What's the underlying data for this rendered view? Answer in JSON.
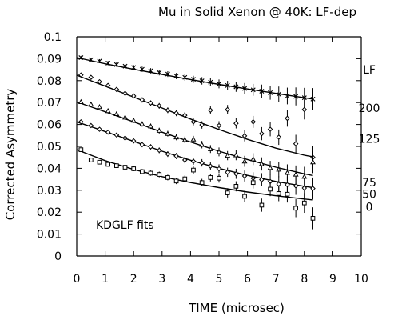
{
  "chart_data": {
    "type": "scatter",
    "title": "Mu in Solid Xenon @ 40K: LF-dep",
    "xlabel": "TIME (microsec)",
    "ylabel": "Corrected Asymmetry",
    "xlim": [
      0,
      10
    ],
    "ylim": [
      0,
      0.1
    ],
    "x_ticks": [
      0,
      1,
      2,
      3,
      4,
      5,
      6,
      7,
      8,
      9,
      10
    ],
    "x_tick_labels": [
      "0",
      "1",
      "2",
      "3",
      "4",
      "5",
      "6",
      "7",
      "8",
      "9",
      "10"
    ],
    "y_ticks": [
      0,
      0.01,
      0.02,
      0.03,
      0.04,
      0.05,
      0.06,
      0.07,
      0.08,
      0.09,
      0.1
    ],
    "y_tick_labels": [
      "0",
      "0.01",
      "0.02",
      "0.03",
      "0.04",
      "0.05",
      "0.06",
      "0.07",
      "0.08",
      "0.09",
      "0.1"
    ],
    "legend_title": "LF",
    "annotation": "KDGLF fits",
    "series": [
      {
        "name": "200",
        "marker": "x",
        "fit": [
          [
            0,
            0.0905
          ],
          [
            1,
            0.0877
          ],
          [
            2,
            0.0852
          ],
          [
            3,
            0.0828
          ],
          [
            4,
            0.0805
          ],
          [
            5,
            0.0783
          ],
          [
            6,
            0.0762
          ],
          [
            7,
            0.0742
          ],
          [
            8,
            0.0722
          ],
          [
            8.3,
            0.0716
          ]
        ],
        "points": [
          [
            0.15,
            0.0905,
            0.0008
          ],
          [
            0.5,
            0.0895,
            0.0009
          ],
          [
            0.8,
            0.0889,
            0.0009
          ],
          [
            1.1,
            0.088,
            0.001
          ],
          [
            1.4,
            0.0873,
            0.001
          ],
          [
            1.7,
            0.0866,
            0.0011
          ],
          [
            2.0,
            0.086,
            0.0011
          ],
          [
            2.3,
            0.0852,
            0.0012
          ],
          [
            2.6,
            0.0845,
            0.0012
          ],
          [
            2.9,
            0.0837,
            0.0013
          ],
          [
            3.2,
            0.083,
            0.0013
          ],
          [
            3.5,
            0.0821,
            0.0014
          ],
          [
            3.8,
            0.0815,
            0.0015
          ],
          [
            4.1,
            0.0806,
            0.0016
          ],
          [
            4.4,
            0.0799,
            0.0017
          ],
          [
            4.7,
            0.0793,
            0.0018
          ],
          [
            5.0,
            0.0785,
            0.002
          ],
          [
            5.3,
            0.0778,
            0.0021
          ],
          [
            5.6,
            0.0772,
            0.0023
          ],
          [
            5.9,
            0.0764,
            0.0025
          ],
          [
            6.2,
            0.0758,
            0.0027
          ],
          [
            6.5,
            0.0752,
            0.003
          ],
          [
            6.8,
            0.0745,
            0.0032
          ],
          [
            7.1,
            0.0738,
            0.0035
          ],
          [
            7.4,
            0.073,
            0.0038
          ],
          [
            7.7,
            0.0728,
            0.0041
          ],
          [
            8.0,
            0.0722,
            0.0045
          ],
          [
            8.3,
            0.0716,
            0.005
          ]
        ]
      },
      {
        "name": "125",
        "marker": "diamond",
        "fit": [
          [
            0,
            0.0825
          ],
          [
            1,
            0.0775
          ],
          [
            2,
            0.0725
          ],
          [
            3,
            0.0675
          ],
          [
            4,
            0.0625
          ],
          [
            5,
            0.0577
          ],
          [
            6,
            0.0532
          ],
          [
            7,
            0.0492
          ],
          [
            8,
            0.046
          ],
          [
            8.3,
            0.0453
          ]
        ],
        "points": [
          [
            0.15,
            0.0826,
            0.0008
          ],
          [
            0.5,
            0.0815,
            0.0009
          ],
          [
            0.8,
            0.0795,
            0.0009
          ],
          [
            1.1,
            0.0778,
            0.001
          ],
          [
            1.4,
            0.076,
            0.001
          ],
          [
            1.7,
            0.0742,
            0.0011
          ],
          [
            2.0,
            0.073,
            0.0011
          ],
          [
            2.3,
            0.0712,
            0.0012
          ],
          [
            2.6,
            0.0698,
            0.0012
          ],
          [
            2.9,
            0.0685,
            0.0013
          ],
          [
            3.2,
            0.0665,
            0.0013
          ],
          [
            3.5,
            0.0652,
            0.0014
          ],
          [
            3.8,
            0.0642,
            0.0015
          ],
          [
            4.1,
            0.0612,
            0.0016
          ],
          [
            4.4,
            0.0598,
            0.0017
          ],
          [
            4.7,
            0.0665,
            0.0018
          ],
          [
            5.0,
            0.0595,
            0.002
          ],
          [
            5.3,
            0.0668,
            0.0021
          ],
          [
            5.6,
            0.0605,
            0.0023
          ],
          [
            5.9,
            0.0548,
            0.0025
          ],
          [
            6.2,
            0.0612,
            0.0027
          ],
          [
            6.5,
            0.0558,
            0.003
          ],
          [
            6.8,
            0.0578,
            0.0032
          ],
          [
            7.1,
            0.0542,
            0.0035
          ],
          [
            7.4,
            0.0628,
            0.0038
          ],
          [
            7.7,
            0.0512,
            0.0041
          ],
          [
            8.0,
            0.0668,
            0.0045
          ],
          [
            8.3,
            0.045,
            0.005
          ]
        ]
      },
      {
        "name": "75",
        "marker": "triangle",
        "fit": [
          [
            0,
            0.0703
          ],
          [
            1,
            0.0658
          ],
          [
            2,
            0.0612
          ],
          [
            3,
            0.0565
          ],
          [
            4,
            0.052
          ],
          [
            5,
            0.0478
          ],
          [
            6,
            0.044
          ],
          [
            7,
            0.0405
          ],
          [
            8,
            0.0375
          ],
          [
            8.3,
            0.0367
          ]
        ],
        "points": [
          [
            0.15,
            0.0703,
            0.0008
          ],
          [
            0.5,
            0.0692,
            0.0009
          ],
          [
            0.8,
            0.068,
            0.0009
          ],
          [
            1.1,
            0.0662,
            0.001
          ],
          [
            1.4,
            0.0648,
            0.001
          ],
          [
            1.7,
            0.0632,
            0.0011
          ],
          [
            2.0,
            0.0618,
            0.0011
          ],
          [
            2.3,
            0.0602,
            0.0012
          ],
          [
            2.6,
            0.0592,
            0.0012
          ],
          [
            2.9,
            0.0572,
            0.0013
          ],
          [
            3.2,
            0.0558,
            0.0013
          ],
          [
            3.5,
            0.0542,
            0.0014
          ],
          [
            3.8,
            0.053,
            0.0015
          ],
          [
            4.1,
            0.0532,
            0.0016
          ],
          [
            4.4,
            0.0508,
            0.0017
          ],
          [
            4.7,
            0.0488,
            0.0018
          ],
          [
            5.0,
            0.0475,
            0.002
          ],
          [
            5.3,
            0.0458,
            0.0021
          ],
          [
            5.6,
            0.046,
            0.0023
          ],
          [
            5.9,
            0.0432,
            0.0025
          ],
          [
            6.2,
            0.0442,
            0.0027
          ],
          [
            6.5,
            0.042,
            0.003
          ],
          [
            6.8,
            0.0402,
            0.0032
          ],
          [
            7.1,
            0.0395,
            0.0035
          ],
          [
            7.4,
            0.038,
            0.0038
          ],
          [
            7.7,
            0.0372,
            0.0041
          ],
          [
            8.0,
            0.0362,
            0.0045
          ],
          [
            8.3,
            0.0428,
            0.005
          ]
        ]
      },
      {
        "name": "50",
        "marker": "diamond",
        "fit": [
          [
            0,
            0.0612
          ],
          [
            1,
            0.0568
          ],
          [
            2,
            0.0523
          ],
          [
            3,
            0.0478
          ],
          [
            4,
            0.0437
          ],
          [
            5,
            0.04
          ],
          [
            6,
            0.0368
          ],
          [
            7,
            0.034
          ],
          [
            8,
            0.0318
          ],
          [
            8.3,
            0.0312
          ]
        ],
        "points": [
          [
            0.15,
            0.0612,
            0.0008
          ],
          [
            0.5,
            0.0595,
            0.0009
          ],
          [
            0.8,
            0.0578,
            0.0009
          ],
          [
            1.1,
            0.0565,
            0.001
          ],
          [
            1.4,
            0.0552,
            0.001
          ],
          [
            1.7,
            0.0538,
            0.0011
          ],
          [
            2.0,
            0.0525,
            0.0011
          ],
          [
            2.3,
            0.0508,
            0.0012
          ],
          [
            2.6,
            0.0498,
            0.0012
          ],
          [
            2.9,
            0.0482,
            0.0013
          ],
          [
            3.2,
            0.0465,
            0.0013
          ],
          [
            3.5,
            0.0456,
            0.0014
          ],
          [
            3.8,
            0.0438,
            0.0015
          ],
          [
            4.1,
            0.0432,
            0.0016
          ],
          [
            4.4,
            0.0425,
            0.0017
          ],
          [
            4.7,
            0.041,
            0.0018
          ],
          [
            5.0,
            0.0398,
            0.002
          ],
          [
            5.3,
            0.0382,
            0.0021
          ],
          [
            5.6,
            0.0375,
            0.0023
          ],
          [
            5.9,
            0.0365,
            0.0025
          ],
          [
            6.2,
            0.0355,
            0.0027
          ],
          [
            6.5,
            0.0348,
            0.003
          ],
          [
            6.8,
            0.034,
            0.0032
          ],
          [
            7.1,
            0.0328,
            0.0035
          ],
          [
            7.4,
            0.0325,
            0.0038
          ],
          [
            7.7,
            0.032,
            0.0041
          ],
          [
            8.0,
            0.031,
            0.0045
          ],
          [
            8.3,
            0.0308,
            0.005
          ]
        ]
      },
      {
        "name": "0",
        "marker": "square",
        "fit": [
          [
            0,
            0.0485
          ],
          [
            1,
            0.0435
          ],
          [
            2,
            0.0395
          ],
          [
            3,
            0.0362
          ],
          [
            4,
            0.0335
          ],
          [
            5,
            0.0312
          ],
          [
            6,
            0.0292
          ],
          [
            7,
            0.0275
          ],
          [
            8,
            0.026
          ],
          [
            8.3,
            0.0256
          ]
        ],
        "points": [
          [
            0.15,
            0.0485,
            0.0008
          ],
          [
            0.5,
            0.0438,
            0.0009
          ],
          [
            0.8,
            0.0428,
            0.0009
          ],
          [
            1.1,
            0.0418,
            0.001
          ],
          [
            1.4,
            0.0412,
            0.001
          ],
          [
            1.7,
            0.0405,
            0.0011
          ],
          [
            2.0,
            0.0398,
            0.0011
          ],
          [
            2.3,
            0.0385,
            0.0012
          ],
          [
            2.6,
            0.0378,
            0.0012
          ],
          [
            2.9,
            0.0372,
            0.0013
          ],
          [
            3.2,
            0.0358,
            0.0013
          ],
          [
            3.5,
            0.0342,
            0.0014
          ],
          [
            3.8,
            0.0352,
            0.0015
          ],
          [
            4.1,
            0.0392,
            0.0016
          ],
          [
            4.4,
            0.0335,
            0.0017
          ],
          [
            4.7,
            0.0358,
            0.0018
          ],
          [
            5.0,
            0.0355,
            0.002
          ],
          [
            5.3,
            0.0288,
            0.0021
          ],
          [
            5.6,
            0.0318,
            0.0023
          ],
          [
            5.9,
            0.0272,
            0.0025
          ],
          [
            6.2,
            0.0335,
            0.0027
          ],
          [
            6.5,
            0.0232,
            0.003
          ],
          [
            6.8,
            0.0305,
            0.0032
          ],
          [
            7.1,
            0.0285,
            0.0035
          ],
          [
            7.4,
            0.0282,
            0.0038
          ],
          [
            7.7,
            0.0218,
            0.0041
          ],
          [
            8.0,
            0.0242,
            0.0045
          ],
          [
            8.3,
            0.0172,
            0.005
          ]
        ]
      }
    ]
  }
}
